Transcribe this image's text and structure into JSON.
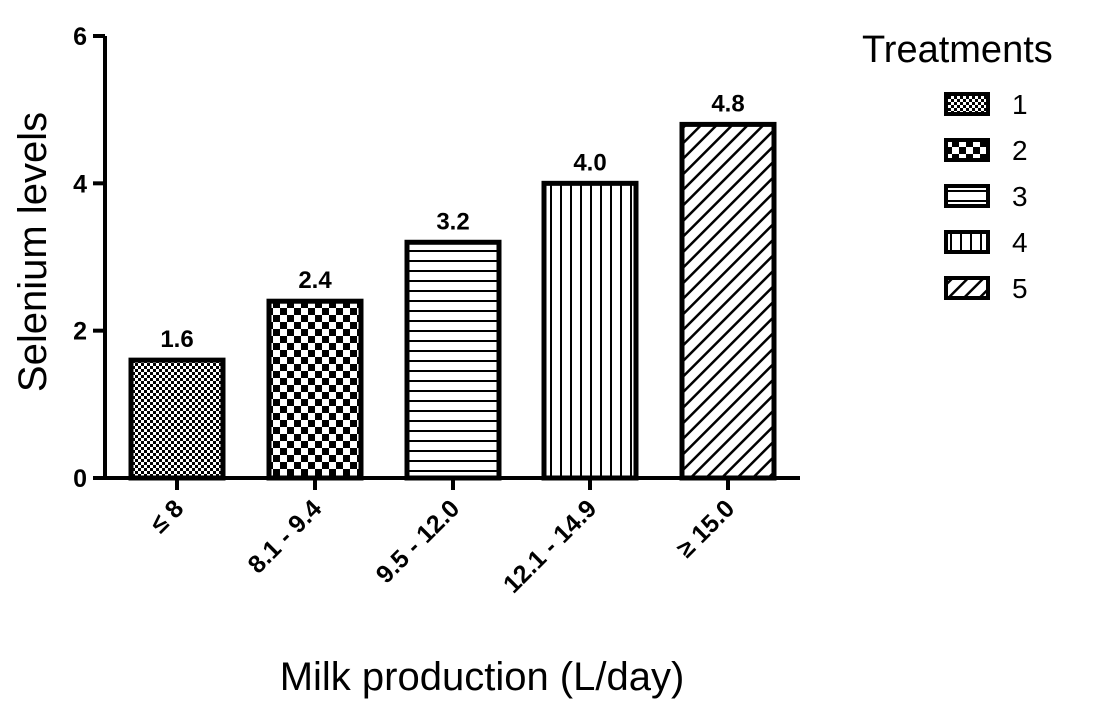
{
  "chart_data": {
    "type": "bar",
    "categories": [
      "≤ 8",
      "8.1 - 9.4",
      "9.5 - 12.0",
      "12.1 - 14.9",
      "≥ 15.0"
    ],
    "values": [
      1.6,
      2.4,
      3.2,
      4.0,
      4.8
    ],
    "value_labels": [
      "1.6",
      "2.4",
      "3.2",
      "4.0",
      "4.8"
    ],
    "title": "",
    "xlabel": "Milk production (L/day)",
    "ylabel": "Selenium levels",
    "ylim": [
      0,
      6
    ],
    "yticks": [
      0,
      2,
      4,
      6
    ],
    "ytick_labels": [
      "0",
      "2",
      "4",
      "6"
    ],
    "grid": false,
    "legend": {
      "title": "Treatments",
      "placement": "right",
      "entries": [
        "1",
        "2",
        "3",
        "4",
        "5"
      ]
    },
    "patterns": [
      "fine-checker",
      "checker",
      "horizontal-stripes",
      "vertical-stripes",
      "diagonal-hatch"
    ],
    "bar_color": "#ffffff",
    "edge_color": "#000000"
  }
}
